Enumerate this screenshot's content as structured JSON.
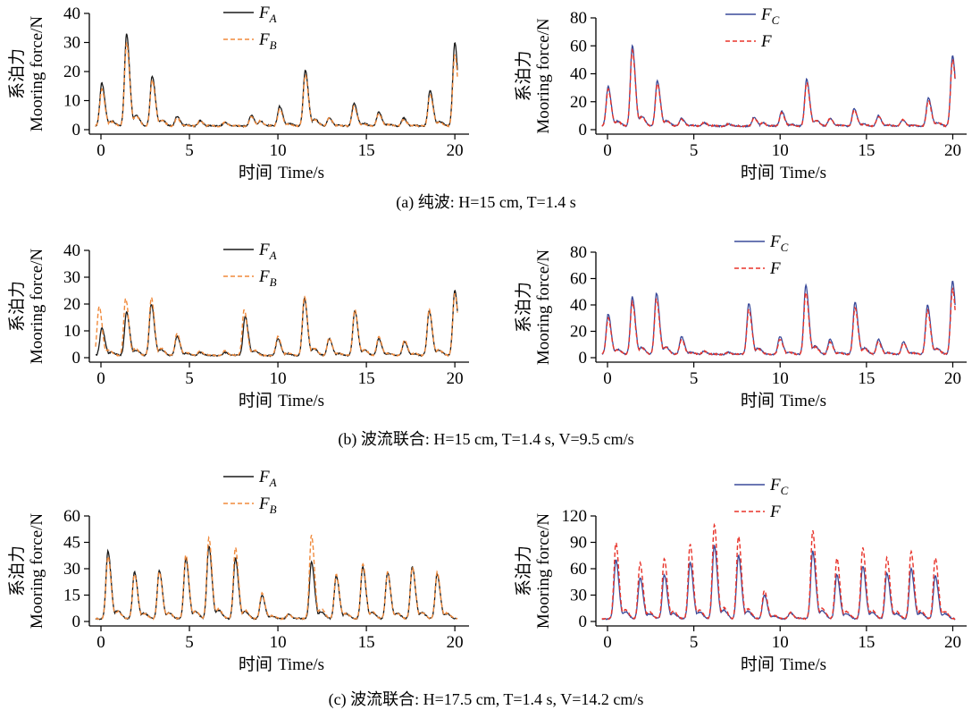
{
  "figure": {
    "captions": [
      {
        "prefix": "(a) ",
        "cn": "纯波",
        "suffix": ": H=15 cm, T=1.4 s"
      },
      {
        "prefix": "(b) ",
        "cn": "波流联合",
        "suffix": ": H=15 cm, T=1.4 s, V=9.5 cm/s"
      },
      {
        "prefix": "(c) ",
        "cn": "波流联合",
        "suffix": ": H=17.5 cm, T=1.4 s, V=14.2 cm/s"
      }
    ],
    "ylabel_cn": "系泊力",
    "ylabel_en": "Mooring force/N",
    "xlabel_cn": "时间",
    "xlabel_en": "Time/s"
  },
  "colors": {
    "F_A": "#1a1a1a",
    "F_B": "#f08a3c",
    "F_C": "#3a4a9a",
    "F": "#e8332a"
  },
  "chart_data": [
    {
      "id": "a-left",
      "type": "line",
      "xlim": [
        0,
        20.7
      ],
      "ylim": [
        0,
        40
      ],
      "xticks": [
        0,
        5,
        10,
        15,
        20
      ],
      "yticks": [
        0,
        10,
        20,
        30,
        40
      ],
      "legend": "top-center",
      "series": [
        {
          "name": "F_A",
          "label": "F",
          "sub": "A",
          "style": "solid",
          "peaks": [
            [
              0.45,
              16
            ],
            [
              1.85,
              33
            ],
            [
              3.3,
              18.5
            ],
            [
              4.7,
              4.5
            ],
            [
              6.0,
              3
            ],
            [
              7.4,
              2.5
            ],
            [
              8.9,
              5
            ],
            [
              9.4,
              3
            ],
            [
              10.5,
              8
            ],
            [
              11.95,
              20.5
            ],
            [
              13.3,
              4
            ],
            [
              14.7,
              9
            ],
            [
              16.1,
              6
            ],
            [
              17.5,
              4
            ],
            [
              19.0,
              13.5
            ],
            [
              20.4,
              30
            ]
          ],
          "base": 1.2
        },
        {
          "name": "F_B",
          "label": "F",
          "sub": "B",
          "style": "dashed",
          "peaks": [
            [
              0.45,
              14
            ],
            [
              1.85,
              30
            ],
            [
              3.3,
              17
            ],
            [
              4.7,
              4
            ],
            [
              6.0,
              3
            ],
            [
              7.4,
              2.5
            ],
            [
              8.9,
              4.5
            ],
            [
              9.4,
              3
            ],
            [
              10.5,
              7
            ],
            [
              11.95,
              19
            ],
            [
              13.3,
              4
            ],
            [
              14.7,
              8
            ],
            [
              16.1,
              5.5
            ],
            [
              17.5,
              3.5
            ],
            [
              19.0,
              12
            ],
            [
              20.4,
              26
            ]
          ],
          "base": 1.2
        }
      ]
    },
    {
      "id": "a-right",
      "type": "line",
      "xlim": [
        0,
        20.7
      ],
      "ylim": [
        0,
        80
      ],
      "xticks": [
        0,
        5,
        10,
        15,
        20
      ],
      "yticks": [
        0,
        20,
        40,
        60,
        80
      ],
      "legend": "top-center",
      "series": [
        {
          "name": "F_C",
          "label": "F",
          "sub": "C",
          "style": "solid",
          "peaks": [
            [
              0.45,
              31
            ],
            [
              1.85,
              60
            ],
            [
              3.3,
              35
            ],
            [
              4.7,
              8
            ],
            [
              6.0,
              5
            ],
            [
              7.4,
              4
            ],
            [
              8.9,
              9
            ],
            [
              9.4,
              5
            ],
            [
              10.5,
              13
            ],
            [
              11.95,
              36
            ],
            [
              13.3,
              8
            ],
            [
              14.7,
              15
            ],
            [
              16.1,
              10
            ],
            [
              17.5,
              7
            ],
            [
              19.0,
              23
            ],
            [
              20.4,
              53
            ]
          ],
          "base": 2.5
        },
        {
          "name": "F",
          "label": "F",
          "sub": "",
          "style": "dashed",
          "peaks": [
            [
              0.45,
              29
            ],
            [
              1.85,
              57
            ],
            [
              3.3,
              33
            ],
            [
              4.7,
              7.5
            ],
            [
              6.0,
              5
            ],
            [
              7.4,
              4
            ],
            [
              8.9,
              8.5
            ],
            [
              9.4,
              5
            ],
            [
              10.5,
              12
            ],
            [
              11.95,
              34
            ],
            [
              13.3,
              8
            ],
            [
              14.7,
              14
            ],
            [
              16.1,
              9.5
            ],
            [
              17.5,
              7
            ],
            [
              19.0,
              21
            ],
            [
              20.4,
              50
            ]
          ],
          "base": 2.5
        }
      ]
    },
    {
      "id": "b-left",
      "type": "line",
      "xlim": [
        0,
        20.7
      ],
      "ylim": [
        0,
        40
      ],
      "xticks": [
        0,
        5,
        10,
        15,
        20
      ],
      "yticks": [
        0,
        10,
        20,
        30,
        40
      ],
      "legend": "top-center",
      "series": [
        {
          "name": "F_A",
          "label": "F",
          "sub": "A",
          "style": "solid",
          "peaks": [
            [
              0.45,
              11
            ],
            [
              1.85,
              17
            ],
            [
              3.25,
              20
            ],
            [
              4.7,
              8
            ],
            [
              6.0,
              2
            ],
            [
              7.4,
              2
            ],
            [
              8.55,
              15.5
            ],
            [
              10.4,
              7
            ],
            [
              11.9,
              22
            ],
            [
              13.3,
              7
            ],
            [
              14.75,
              17.5
            ],
            [
              16.1,
              7
            ],
            [
              17.55,
              6
            ],
            [
              18.95,
              17.5
            ],
            [
              20.4,
              25
            ]
          ],
          "base": 0.8
        },
        {
          "name": "F_B",
          "label": "F",
          "sub": "B",
          "style": "dashed",
          "peaks": [
            [
              0.3,
              19
            ],
            [
              1.8,
              22
            ],
            [
              3.25,
              22.5
            ],
            [
              4.7,
              9
            ],
            [
              6.0,
              2.5
            ],
            [
              7.4,
              2.5
            ],
            [
              8.5,
              18
            ],
            [
              10.4,
              8
            ],
            [
              11.9,
              23
            ],
            [
              13.3,
              7.5
            ],
            [
              14.75,
              18
            ],
            [
              16.1,
              8
            ],
            [
              17.55,
              6.5
            ],
            [
              18.95,
              18
            ],
            [
              20.4,
              24
            ]
          ],
          "base": 0.8
        }
      ]
    },
    {
      "id": "b-right",
      "type": "line",
      "xlim": [
        0,
        20.7
      ],
      "ylim": [
        0,
        80
      ],
      "xticks": [
        0,
        5,
        10,
        15,
        20
      ],
      "yticks": [
        0,
        20,
        40,
        60,
        80
      ],
      "legend": "top-center",
      "series": [
        {
          "name": "F_C",
          "label": "F",
          "sub": "C",
          "style": "solid",
          "peaks": [
            [
              0.45,
              33
            ],
            [
              1.85,
              46
            ],
            [
              3.25,
              49
            ],
            [
              4.7,
              16
            ],
            [
              6.0,
              5
            ],
            [
              7.4,
              4
            ],
            [
              8.6,
              41
            ],
            [
              10.4,
              16
            ],
            [
              11.9,
              55
            ],
            [
              13.3,
              14
            ],
            [
              14.75,
              42
            ],
            [
              16.1,
              14
            ],
            [
              17.55,
              12
            ],
            [
              18.95,
              40
            ],
            [
              20.4,
              58
            ]
          ],
          "base": 2.5
        },
        {
          "name": "F",
          "label": "F",
          "sub": "",
          "style": "dashed",
          "peaks": [
            [
              0.45,
              30
            ],
            [
              1.85,
              42
            ],
            [
              3.25,
              45
            ],
            [
              4.7,
              14
            ],
            [
              6.0,
              5
            ],
            [
              7.4,
              4
            ],
            [
              8.6,
              37
            ],
            [
              10.4,
              14
            ],
            [
              11.9,
              50
            ],
            [
              13.3,
              12
            ],
            [
              14.75,
              38
            ],
            [
              16.1,
              12
            ],
            [
              17.55,
              11
            ],
            [
              18.95,
              36
            ],
            [
              20.4,
              52
            ]
          ],
          "base": 2.5
        }
      ]
    },
    {
      "id": "c-left",
      "type": "line",
      "xlim": [
        0,
        20.7
      ],
      "ylim": [
        0,
        60
      ],
      "xticks": [
        0,
        5,
        10,
        15,
        20
      ],
      "yticks": [
        0,
        15,
        30,
        45,
        60
      ],
      "legend": "top-center",
      "series": [
        {
          "name": "F_A",
          "label": "F",
          "sub": "A",
          "style": "solid",
          "peaks": [
            [
              0.8,
              40
            ],
            [
              2.3,
              28
            ],
            [
              3.7,
              29
            ],
            [
              5.2,
              36
            ],
            [
              6.5,
              43
            ],
            [
              8.0,
              36
            ],
            [
              9.5,
              15
            ],
            [
              11.0,
              4
            ],
            [
              12.3,
              34
            ],
            [
              13.7,
              26
            ],
            [
              15.2,
              31
            ],
            [
              16.6,
              28
            ],
            [
              18.0,
              31
            ],
            [
              19.4,
              27
            ]
          ],
          "base": 1.5
        },
        {
          "name": "F_B",
          "label": "F",
          "sub": "B",
          "style": "dashed",
          "peaks": [
            [
              0.8,
              37
            ],
            [
              2.3,
              27
            ],
            [
              3.7,
              28
            ],
            [
              5.2,
              38
            ],
            [
              6.5,
              48
            ],
            [
              8.0,
              42
            ],
            [
              9.5,
              16
            ],
            [
              11.0,
              4
            ],
            [
              12.3,
              49
            ],
            [
              13.7,
              27
            ],
            [
              15.2,
              33
            ],
            [
              16.6,
              28
            ],
            [
              18.0,
              31
            ],
            [
              19.4,
              28
            ]
          ],
          "base": 1.5
        }
      ]
    },
    {
      "id": "c-right",
      "type": "line",
      "xlim": [
        0,
        20.7
      ],
      "ylim": [
        0,
        120
      ],
      "xticks": [
        0,
        5,
        10,
        15,
        20
      ],
      "yticks": [
        0,
        30,
        60,
        90,
        120
      ],
      "legend": "top-center",
      "series": [
        {
          "name": "F_C",
          "label": "F",
          "sub": "C",
          "style": "solid",
          "peaks": [
            [
              0.9,
              70
            ],
            [
              2.3,
              50
            ],
            [
              3.7,
              53
            ],
            [
              5.2,
              67
            ],
            [
              6.6,
              87
            ],
            [
              8.0,
              75
            ],
            [
              9.5,
              30
            ],
            [
              11.0,
              10
            ],
            [
              12.3,
              80
            ],
            [
              13.7,
              53
            ],
            [
              15.2,
              63
            ],
            [
              16.6,
              55
            ],
            [
              18.0,
              60
            ],
            [
              19.4,
              52
            ]
          ],
          "base": 3
        },
        {
          "name": "F",
          "label": "F",
          "sub": "",
          "style": "dashed",
          "peaks": [
            [
              0.9,
              90
            ],
            [
              2.3,
              67
            ],
            [
              3.7,
              72
            ],
            [
              5.2,
              88
            ],
            [
              6.6,
              110
            ],
            [
              8.0,
              97
            ],
            [
              9.5,
              35
            ],
            [
              11.0,
              10
            ],
            [
              12.3,
              103
            ],
            [
              13.7,
              72
            ],
            [
              15.2,
              84
            ],
            [
              16.6,
              73
            ],
            [
              18.0,
              80
            ],
            [
              19.4,
              73
            ]
          ],
          "base": 3
        }
      ]
    }
  ]
}
